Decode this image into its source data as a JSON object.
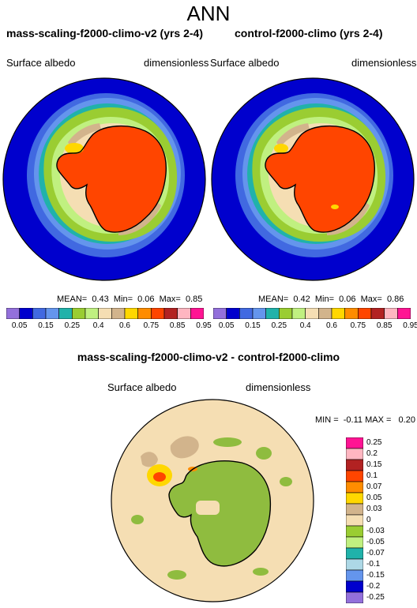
{
  "title": "ANN",
  "panels": [
    {
      "name": "mass-scaling-f2000-climo-v2 (yrs 2-4)",
      "left_label": "Surface albedo",
      "right_label": "dimensionless",
      "stats": "MEAN=  0.43  Min=  0.06  Max=  0.85"
    },
    {
      "name": "control-f2000-climo (yrs 2-4)",
      "left_label": "Surface albedo",
      "right_label": "dimensionless",
      "stats": "MEAN=  0.42  Min=  0.06  Max=  0.86"
    }
  ],
  "diff_panel": {
    "name": "mass-scaling-f2000-climo-v2 - control-f2000-climo",
    "left_label": "Surface albedo",
    "right_label": "dimensionless",
    "stats": "MIN =  -0.11 MAX =   0.20"
  },
  "colorbar_main": {
    "labels": [
      "0.05",
      "0.15",
      "0.25",
      "0.4",
      "0.6",
      "0.75",
      "0.85",
      "0.95"
    ],
    "colors": [
      "#9370db",
      "#0000cd",
      "#4169e1",
      "#6495ed",
      "#20b2aa",
      "#9acd32",
      "#c0f080",
      "#f5deb3",
      "#d2b48c",
      "#ffd700",
      "#ff8c00",
      "#ff4500",
      "#b22222",
      "#ffb6c1",
      "#ff1493"
    ]
  },
  "colorbar_diff": {
    "labels": [
      "0.25",
      "0.2",
      "0.15",
      "0.1",
      "0.07",
      "0.05",
      "0.03",
      "0",
      "-0.03",
      "-0.05",
      "-0.07",
      "-0.1",
      "-0.15",
      "-0.2",
      "-0.25"
    ],
    "colors": [
      "#ff1493",
      "#ffb6c1",
      "#b22222",
      "#ff4500",
      "#ff8c00",
      "#ffd700",
      "#d2b48c",
      "#f5deb3",
      "#9acd32",
      "#c0f080",
      "#20b2aa",
      "#add8e6",
      "#6495ed",
      "#0000cd",
      "#9370db"
    ]
  },
  "map_colors": {
    "ocean": "#0000cd",
    "ice_band_1": "#4169e1",
    "ice_band_2": "#6495ed",
    "ice_band_3": "#20b2aa",
    "ice_band_4": "#9acd32",
    "ice_band_5": "#c0f080",
    "shelf": "#f5deb3",
    "shelf_dark": "#d2b48c",
    "continent": "#ff4500",
    "highlight": "#ffd700",
    "diff_background": "#f5deb3",
    "diff_negative": "#8fbc3f"
  }
}
